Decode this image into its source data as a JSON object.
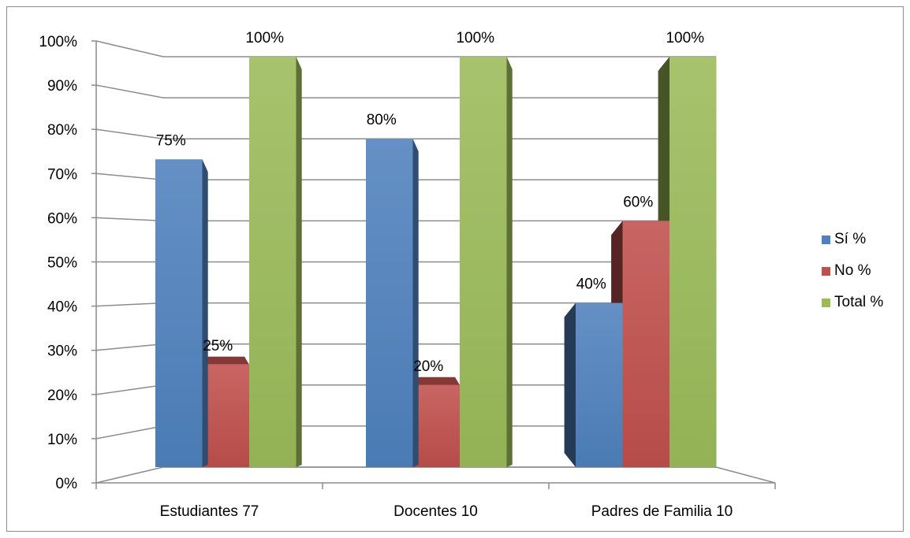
{
  "chart_data": {
    "type": "bar",
    "categories": [
      "Estudiantes 77",
      "Docentes 10",
      "Padres de Familia 10"
    ],
    "series": [
      {
        "name": "Sí %",
        "values": [
          75,
          80,
          40
        ],
        "color": "#4f81bd"
      },
      {
        "name": "No %",
        "values": [
          25,
          20,
          60
        ],
        "color": "#c0504d"
      },
      {
        "name": "Total %",
        "values": [
          100,
          100,
          100
        ],
        "color": "#9bbb59"
      }
    ],
    "data_labels": [
      [
        "75%",
        "80%",
        "40%"
      ],
      [
        "25%",
        "20%",
        "60%"
      ],
      [
        "100%",
        "100%",
        "100%"
      ]
    ],
    "y_ticks": [
      "0%",
      "10%",
      "20%",
      "30%",
      "40%",
      "50%",
      "60%",
      "70%",
      "80%",
      "90%",
      "100%"
    ],
    "ylim": [
      0,
      100
    ],
    "grid": true,
    "legend_position": "right",
    "title": "",
    "xlabel": "",
    "ylabel": ""
  }
}
